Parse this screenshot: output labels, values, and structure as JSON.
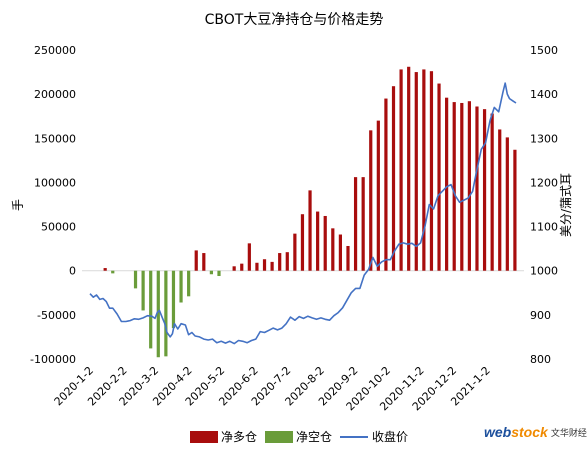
{
  "chart_data": {
    "type": "bar+line",
    "title": "CBOT大豆净持仓与价格走势",
    "ylabel_left": "手",
    "ylabel_right": "美分/蒲式耳",
    "ylim_left": [
      -100000,
      250000
    ],
    "ylim_right": [
      800,
      1500
    ],
    "yticks_left": [
      "250000",
      "200000",
      "150000",
      "100000",
      "50000",
      "0",
      "-50000",
      "-100000"
    ],
    "yticks_left_values": [
      250000,
      200000,
      150000,
      100000,
      50000,
      0,
      -50000,
      -100000
    ],
    "yticks_right": [
      "1500",
      "1400",
      "1300",
      "1200",
      "1100",
      "1000",
      "900",
      "800"
    ],
    "yticks_right_values": [
      1500,
      1400,
      1300,
      1200,
      1100,
      1000,
      900,
      800
    ],
    "xlim": [
      "2020-01-02",
      "2021-01-29"
    ],
    "xticks": [
      "2020-1-2",
      "2020-2-2",
      "2020-3-2",
      "2020-4-2",
      "2020-5-2",
      "2020-6-2",
      "2020-7-2",
      "2020-8-2",
      "2020-9-2",
      "2020-10-2",
      "2020-11-2",
      "2020-12-2",
      "2021-1-2"
    ],
    "xtick_dates": [
      "2020-01-02",
      "2020-02-02",
      "2020-03-02",
      "2020-04-02",
      "2020-05-02",
      "2020-06-02",
      "2020-07-02",
      "2020-08-02",
      "2020-09-02",
      "2020-10-02",
      "2020-11-02",
      "2020-12-02",
      "2021-01-02"
    ],
    "weeks": [
      "2020-01-02",
      "2020-01-09",
      "2020-01-16",
      "2020-01-23",
      "2020-01-30",
      "2020-02-06",
      "2020-02-13",
      "2020-02-20",
      "2020-02-27",
      "2020-03-05",
      "2020-03-12",
      "2020-03-19",
      "2020-03-26",
      "2020-04-02",
      "2020-04-09",
      "2020-04-16",
      "2020-04-23",
      "2020-04-30",
      "2020-05-07",
      "2020-05-14",
      "2020-05-21",
      "2020-05-28",
      "2020-06-04",
      "2020-06-11",
      "2020-06-18",
      "2020-06-25",
      "2020-07-02",
      "2020-07-09",
      "2020-07-16",
      "2020-07-23",
      "2020-07-30",
      "2020-08-06",
      "2020-08-13",
      "2020-08-20",
      "2020-08-27",
      "2020-09-03",
      "2020-09-10",
      "2020-09-17",
      "2020-09-24",
      "2020-10-01",
      "2020-10-08",
      "2020-10-15",
      "2020-10-22",
      "2020-10-29",
      "2020-11-05",
      "2020-11-12",
      "2020-11-19",
      "2020-11-26",
      "2020-12-03",
      "2020-12-10",
      "2020-12-17",
      "2020-12-24",
      "2020-12-31",
      "2021-01-07",
      "2021-01-14",
      "2021-01-21",
      "2021-01-28"
    ],
    "series": [
      {
        "name": "净多仓",
        "kind": "bar",
        "axis": "left",
        "color": "#a80d0d",
        "values": [
          null,
          null,
          3000,
          null,
          null,
          null,
          null,
          null,
          null,
          null,
          null,
          null,
          null,
          null,
          23000,
          20000,
          null,
          null,
          null,
          5000,
          8000,
          31000,
          9000,
          13000,
          10000,
          20000,
          21000,
          42000,
          64000,
          91000,
          67000,
          62000,
          48000,
          41000,
          28000,
          106000,
          106000,
          159000,
          170000,
          195000,
          209000,
          228000,
          231000,
          225000,
          228000,
          226000,
          212000,
          196000,
          191000,
          190000,
          192000,
          186000,
          183000,
          178000,
          160000,
          151000,
          137000
        ]
      },
      {
        "name": "净空仓",
        "kind": "bar",
        "axis": "left",
        "color": "#6a9c3a",
        "values": [
          null,
          null,
          null,
          -3000,
          null,
          null,
          -20000,
          -45000,
          -88000,
          -98000,
          -97000,
          -65000,
          -36000,
          -29000,
          null,
          null,
          -4000,
          -6000,
          null,
          null,
          null,
          null,
          null,
          null,
          null,
          null,
          null,
          null,
          null,
          null,
          null,
          null,
          null,
          null,
          null,
          null,
          null,
          null,
          null,
          null,
          null,
          null,
          null,
          null,
          null,
          null,
          null,
          null,
          null,
          null,
          null,
          null,
          null,
          null,
          null,
          null,
          null
        ]
      },
      {
        "name": "收盘价",
        "kind": "line",
        "axis": "right",
        "color": "#4472c4",
        "points": [
          [
            "2020-01-02",
            948
          ],
          [
            "2020-01-05",
            940
          ],
          [
            "2020-01-08",
            945
          ],
          [
            "2020-01-11",
            935
          ],
          [
            "2020-01-14",
            937
          ],
          [
            "2020-01-17",
            930
          ],
          [
            "2020-01-20",
            915
          ],
          [
            "2020-01-23",
            915
          ],
          [
            "2020-01-27",
            902
          ],
          [
            "2020-01-31",
            885
          ],
          [
            "2020-02-04",
            885
          ],
          [
            "2020-02-08",
            887
          ],
          [
            "2020-02-12",
            891
          ],
          [
            "2020-02-16",
            890
          ],
          [
            "2020-02-20",
            893
          ],
          [
            "2020-02-24",
            898
          ],
          [
            "2020-02-28",
            897
          ],
          [
            "2020-03-02",
            892
          ],
          [
            "2020-03-04",
            905
          ],
          [
            "2020-03-06",
            910
          ],
          [
            "2020-03-09",
            892
          ],
          [
            "2020-03-11",
            880
          ],
          [
            "2020-03-13",
            860
          ],
          [
            "2020-03-16",
            850
          ],
          [
            "2020-03-18",
            857
          ],
          [
            "2020-03-20",
            880
          ],
          [
            "2020-03-23",
            868
          ],
          [
            "2020-03-26",
            880
          ],
          [
            "2020-03-30",
            877
          ],
          [
            "2020-04-02",
            855
          ],
          [
            "2020-04-05",
            860
          ],
          [
            "2020-04-08",
            852
          ],
          [
            "2020-04-12",
            850
          ],
          [
            "2020-04-16",
            845
          ],
          [
            "2020-04-20",
            843
          ],
          [
            "2020-04-24",
            845
          ],
          [
            "2020-04-28",
            837
          ],
          [
            "2020-05-02",
            840
          ],
          [
            "2020-05-06",
            836
          ],
          [
            "2020-05-10",
            840
          ],
          [
            "2020-05-14",
            835
          ],
          [
            "2020-05-18",
            842
          ],
          [
            "2020-05-22",
            840
          ],
          [
            "2020-05-26",
            837
          ],
          [
            "2020-05-30",
            842
          ],
          [
            "2020-06-03",
            845
          ],
          [
            "2020-06-07",
            862
          ],
          [
            "2020-06-11",
            860
          ],
          [
            "2020-06-15",
            865
          ],
          [
            "2020-06-19",
            870
          ],
          [
            "2020-06-23",
            866
          ],
          [
            "2020-06-27",
            870
          ],
          [
            "2020-07-01",
            880
          ],
          [
            "2020-07-05",
            895
          ],
          [
            "2020-07-09",
            888
          ],
          [
            "2020-07-13",
            896
          ],
          [
            "2020-07-17",
            892
          ],
          [
            "2020-07-21",
            897
          ],
          [
            "2020-07-25",
            893
          ],
          [
            "2020-07-29",
            890
          ],
          [
            "2020-08-02",
            893
          ],
          [
            "2020-08-06",
            890
          ],
          [
            "2020-08-10",
            888
          ],
          [
            "2020-08-14",
            898
          ],
          [
            "2020-08-18",
            905
          ],
          [
            "2020-08-22",
            916
          ],
          [
            "2020-08-26",
            933
          ],
          [
            "2020-08-30",
            950
          ],
          [
            "2020-09-03",
            960
          ],
          [
            "2020-09-07",
            960
          ],
          [
            "2020-09-11",
            990
          ],
          [
            "2020-09-15",
            1003
          ],
          [
            "2020-09-19",
            1030
          ],
          [
            "2020-09-23",
            1010
          ],
          [
            "2020-09-27",
            1020
          ],
          [
            "2020-10-01",
            1025
          ],
          [
            "2020-10-05",
            1025
          ],
          [
            "2020-10-09",
            1045
          ],
          [
            "2020-10-13",
            1060
          ],
          [
            "2020-10-17",
            1063
          ],
          [
            "2020-10-21",
            1060
          ],
          [
            "2020-10-25",
            1062
          ],
          [
            "2020-10-29",
            1055
          ],
          [
            "2020-11-02",
            1063
          ],
          [
            "2020-11-06",
            1100
          ],
          [
            "2020-11-10",
            1150
          ],
          [
            "2020-11-14",
            1140
          ],
          [
            "2020-11-18",
            1170
          ],
          [
            "2020-11-22",
            1180
          ],
          [
            "2020-11-26",
            1190
          ],
          [
            "2020-11-30",
            1195
          ],
          [
            "2020-12-04",
            1170
          ],
          [
            "2020-12-08",
            1155
          ],
          [
            "2020-12-12",
            1160
          ],
          [
            "2020-12-16",
            1165
          ],
          [
            "2020-12-20",
            1180
          ],
          [
            "2020-12-24",
            1230
          ],
          [
            "2020-12-28",
            1275
          ],
          [
            "2021-01-01",
            1290
          ],
          [
            "2021-01-05",
            1340
          ],
          [
            "2021-01-09",
            1370
          ],
          [
            "2021-01-13",
            1360
          ],
          [
            "2021-01-17",
            1405
          ],
          [
            "2021-01-19",
            1425
          ],
          [
            "2021-01-21",
            1400
          ],
          [
            "2021-01-23",
            1390
          ],
          [
            "2021-01-26",
            1385
          ],
          [
            "2021-01-29",
            1380
          ]
        ]
      }
    ],
    "legend": [
      "净多仓",
      "净空仓",
      "收盘价"
    ],
    "legend_position": "bottom",
    "grid": false
  },
  "watermark": {
    "text_web": "web",
    "text_stock": "stock",
    "text_cn": "文华财经"
  }
}
